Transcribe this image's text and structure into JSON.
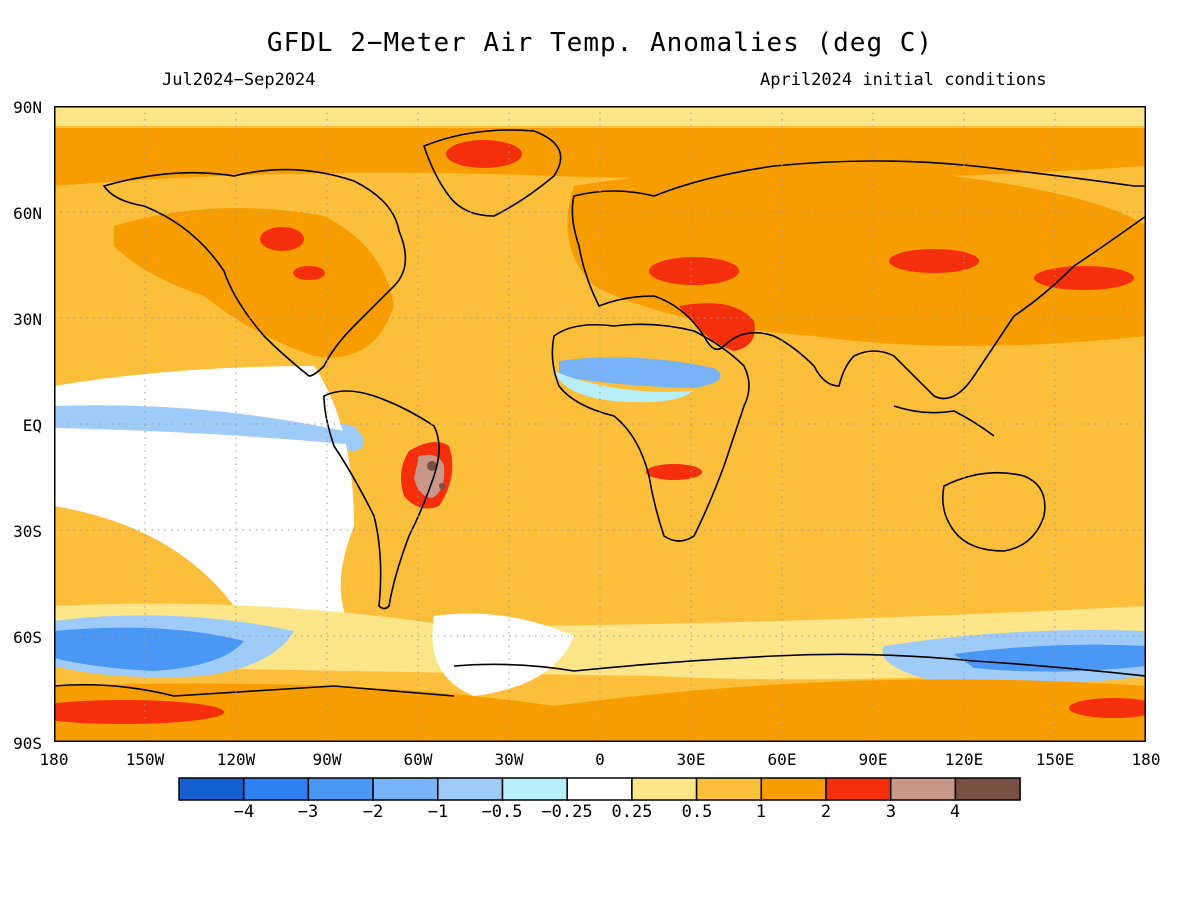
{
  "title": "GFDL 2−Meter Air Temp. Anomalies (deg C)",
  "period": "Jul2024−Sep2024",
  "init": "April2024 initial conditions",
  "lat_labels": [
    "90N",
    "60N",
    "30N",
    "EQ",
    "30S",
    "60S",
    "90S"
  ],
  "lon_labels": [
    "180",
    "150W",
    "120W",
    "90W",
    "60W",
    "30W",
    "0",
    "30E",
    "60E",
    "90E",
    "120E",
    "150E",
    "180"
  ],
  "colorbar": {
    "labels": [
      "−4",
      "−3",
      "−2",
      "−1",
      "−0.5",
      "−0.25",
      "0.25",
      "0.5",
      "1",
      "2",
      "3",
      "4"
    ],
    "colors": [
      "#1560d0",
      "#2f7ff0",
      "#4a97f6",
      "#78b3f8",
      "#9fcbf8",
      "#b8eef8",
      "#ffffff",
      "#fde68a",
      "#fbbf3c",
      "#f79d00",
      "#f52e0c",
      "#c9968a",
      "#7a4f44"
    ]
  }
}
